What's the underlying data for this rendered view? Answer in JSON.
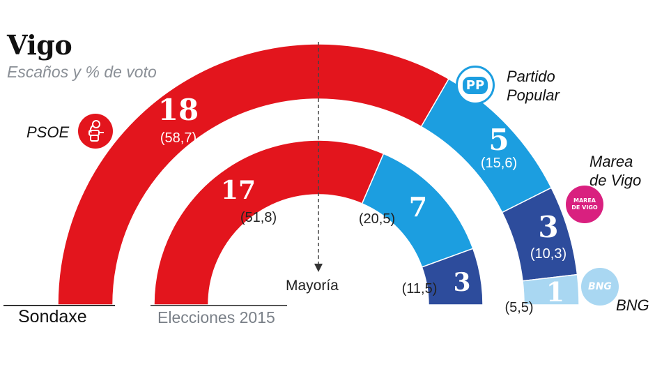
{
  "header": {
    "title": "Vigo",
    "subtitle": "Escaños y % de voto"
  },
  "parties": {
    "psoe": {
      "label": "PSOE"
    },
    "pp": {
      "label_line1": "Partido",
      "label_line2": "Popular",
      "logo_text": "PP"
    },
    "marea": {
      "label_line1": "Marea",
      "label_line2": "de Vigo",
      "logo_text_1": "MAREA",
      "logo_text_2": "DE VIGO"
    },
    "bng": {
      "label": "BNG",
      "logo_text": "BNG"
    }
  },
  "footer": {
    "left": "Sondaxe",
    "right": "Elecciones 2015"
  },
  "majority_label": "Mayoría",
  "colors": {
    "psoe": "#e3151d",
    "pp": "#1c9ee0",
    "marea": "#2d4c9c",
    "bng": "#a9d7f2",
    "marea_logo": "#d9207f"
  },
  "chart_data": [
    {
      "type": "semicircle",
      "name": "Sondaxe",
      "total_seats": 27,
      "series": [
        {
          "name": "PSOE",
          "seats": 18,
          "vote_pct": "58,7"
        },
        {
          "name": "Partido Popular",
          "seats": 5,
          "vote_pct": "15,6"
        },
        {
          "name": "Marea de Vigo",
          "seats": 3,
          "vote_pct": "10,3"
        },
        {
          "name": "BNG",
          "seats": 1,
          "vote_pct": "5,5"
        }
      ]
    },
    {
      "type": "semicircle",
      "name": "Elecciones 2015",
      "total_seats": 27,
      "series": [
        {
          "name": "PSOE",
          "seats": 17,
          "vote_pct": "51,8"
        },
        {
          "name": "Partido Popular",
          "seats": 7,
          "vote_pct": "20,5"
        },
        {
          "name": "Marea de Vigo",
          "seats": 3,
          "vote_pct": "11,5"
        }
      ]
    }
  ]
}
